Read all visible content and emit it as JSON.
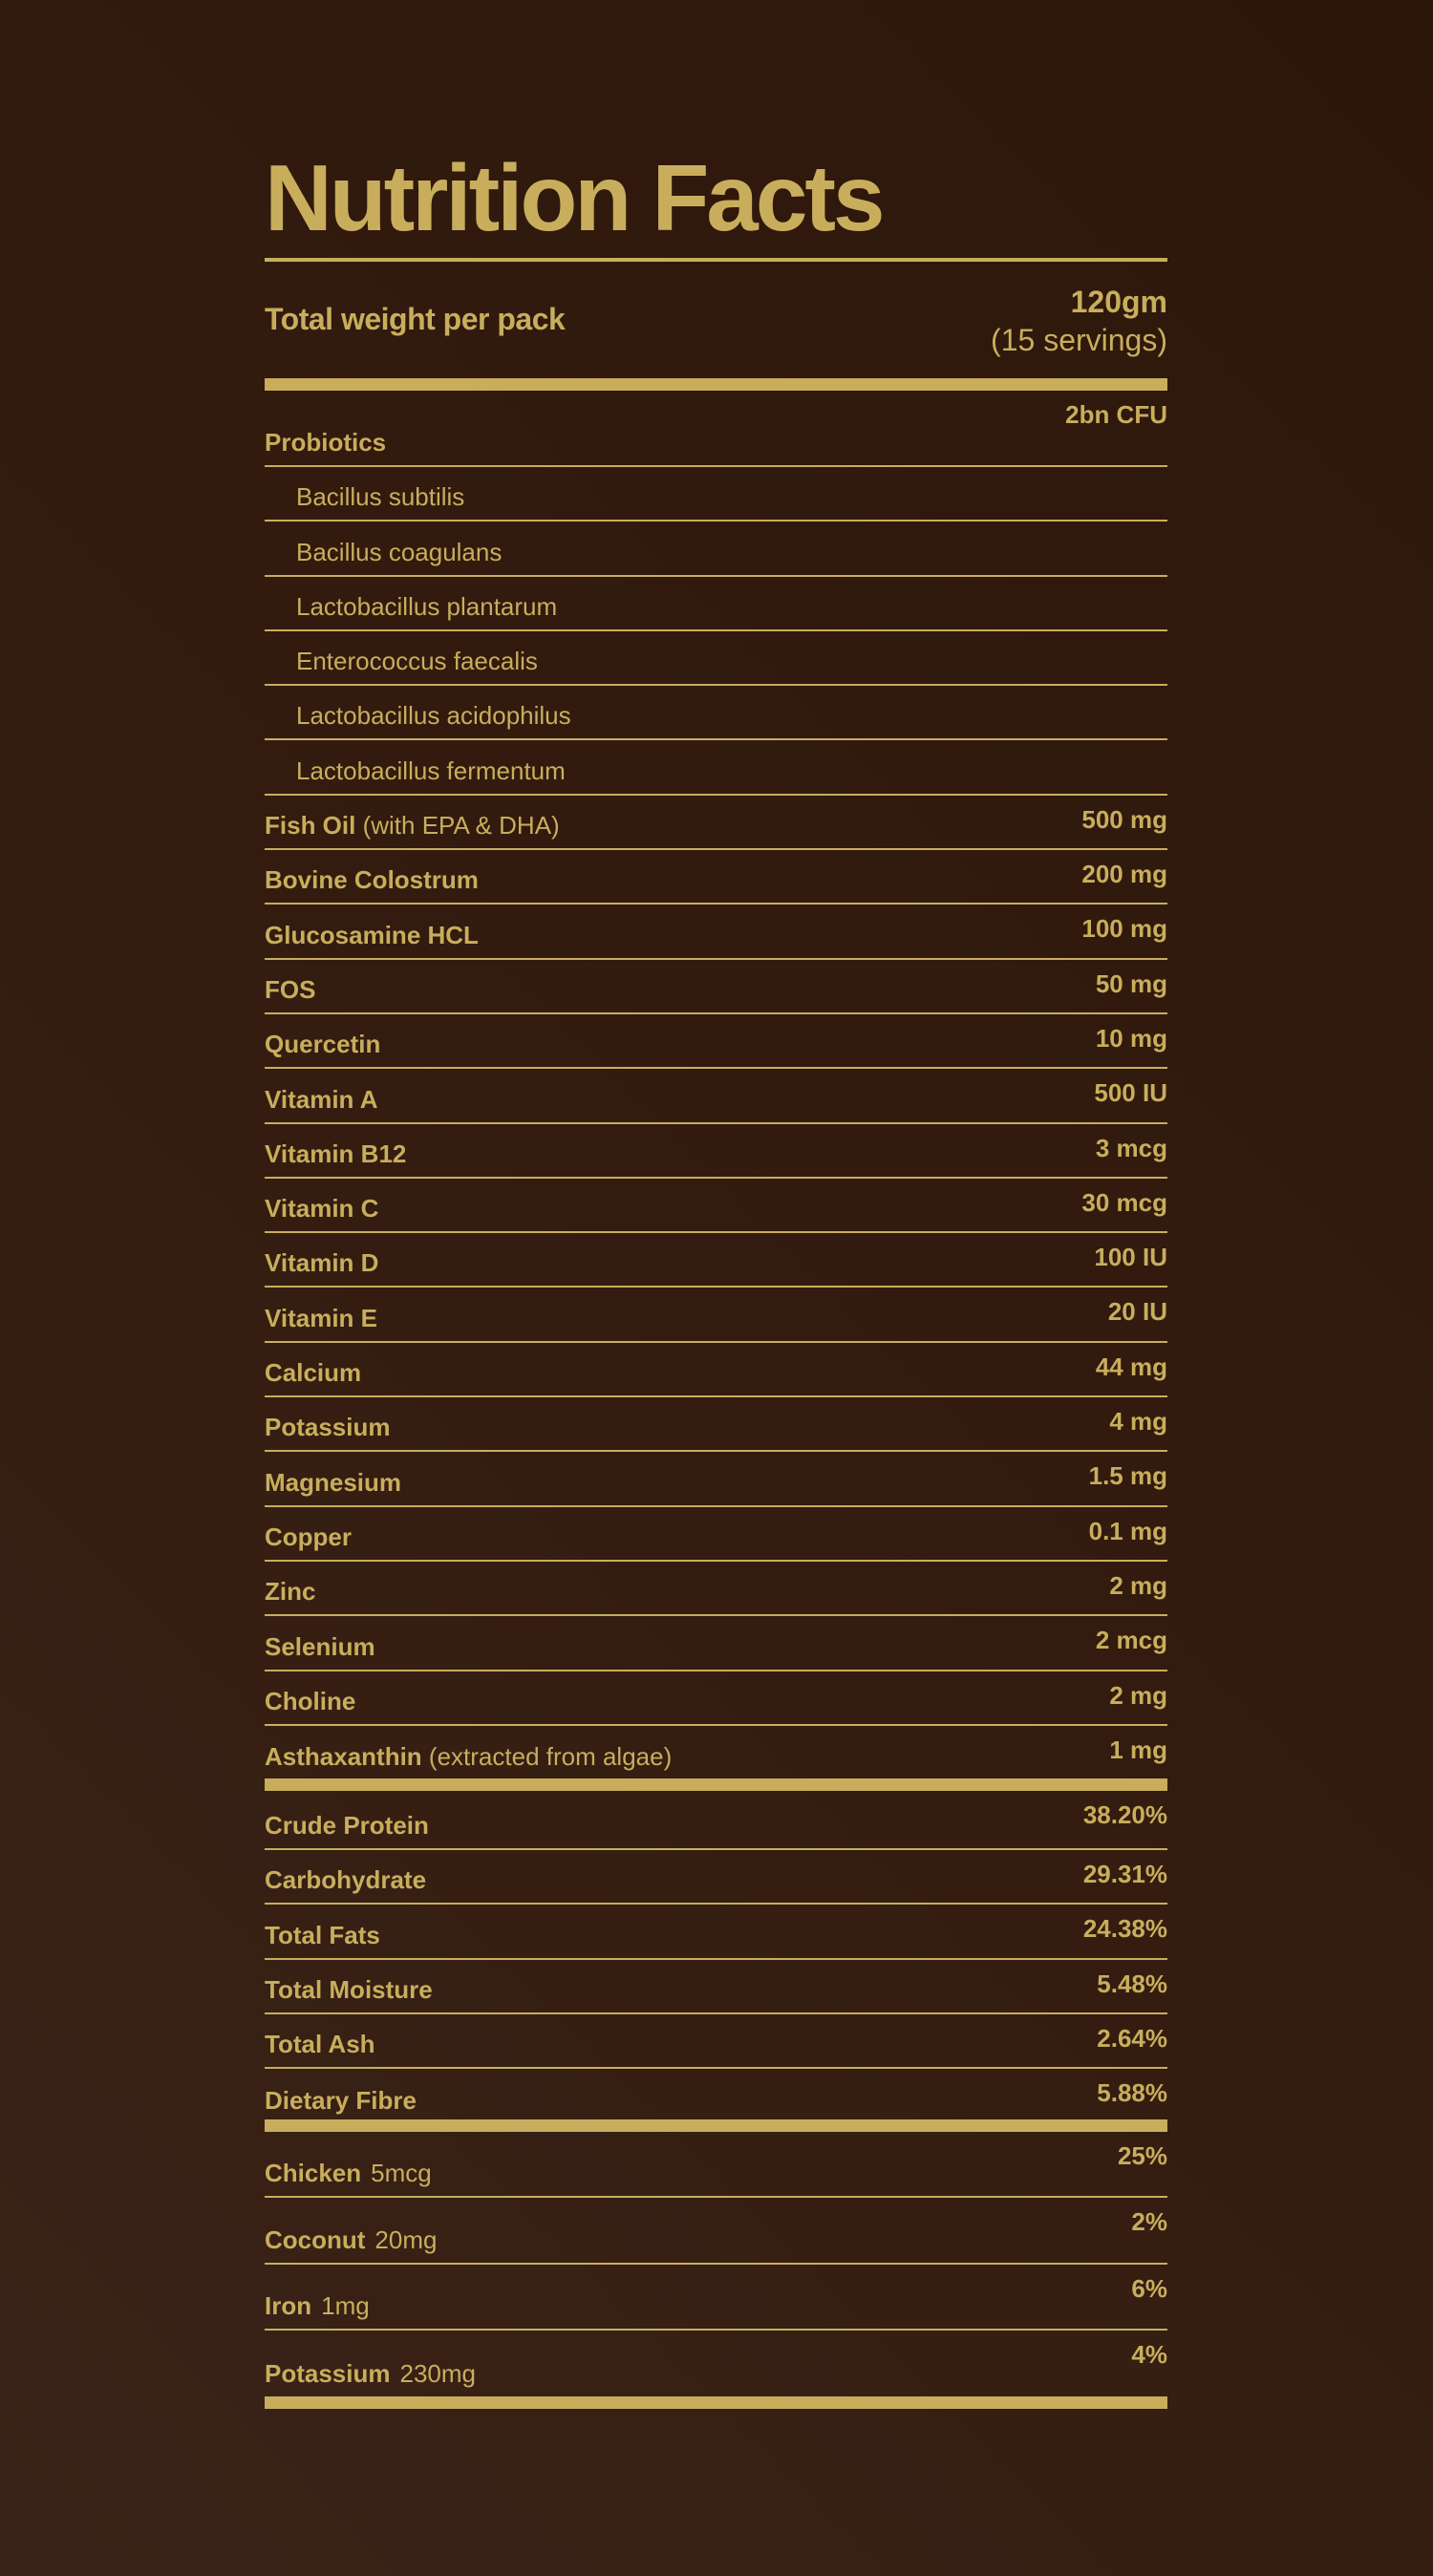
{
  "title": "Nutrition Facts",
  "weight": {
    "label": "Total weight per pack",
    "amount": "120gm",
    "servings": "(15 servings)"
  },
  "accent_color": "#c8ae5c",
  "ingredients": [
    {
      "label": "Probiotics",
      "value": "2bn CFU"
    },
    {
      "label": "Bacillus subtilis",
      "sub": true
    },
    {
      "label": "Bacillus coagulans",
      "sub": true
    },
    {
      "label": "Lactobacillus plantarum",
      "sub": true
    },
    {
      "label": "Enterococcus faecalis",
      "sub": true
    },
    {
      "label": "Lactobacillus acidophilus",
      "sub": true
    },
    {
      "label": "Lactobacillus fermentum",
      "sub": true
    },
    {
      "label": "Fish Oil",
      "note": "(with EPA & DHA)",
      "value": "500 mg"
    },
    {
      "label": "Bovine Colostrum",
      "value": "200 mg"
    },
    {
      "label": "Glucosamine HCL",
      "value": "100 mg"
    },
    {
      "label": "FOS",
      "value": "50 mg"
    },
    {
      "label": "Quercetin",
      "value": "10 mg"
    },
    {
      "label": "Vitamin A",
      "value": "500 IU"
    },
    {
      "label": "Vitamin B12",
      "value": "3 mcg"
    },
    {
      "label": "Vitamin C",
      "value": "30 mcg"
    },
    {
      "label": "Vitamin D",
      "value": "100 IU"
    },
    {
      "label": "Vitamin E",
      "value": "20 IU"
    },
    {
      "label": "Calcium",
      "value": "44 mg"
    },
    {
      "label": "Potassium",
      "value": "4 mg"
    },
    {
      "label": "Magnesium",
      "value": "1.5 mg"
    },
    {
      "label": "Copper",
      "value": "0.1 mg"
    },
    {
      "label": "Zinc",
      "value": "2 mg"
    },
    {
      "label": "Selenium",
      "value": "2 mcg"
    },
    {
      "label": "Choline",
      "value": "2 mg"
    },
    {
      "label": "Asthaxanthin",
      "note": "(extracted from algae)",
      "value": "1 mg"
    }
  ],
  "analysis": [
    {
      "label": "Crude Protein",
      "value": "38.20%"
    },
    {
      "label": "Carbohydrate",
      "value": "29.31%"
    },
    {
      "label": "Total Fats",
      "value": "24.38%"
    },
    {
      "label": "Total Moisture",
      "value": "5.48%"
    },
    {
      "label": "Total Ash",
      "value": "2.64%"
    },
    {
      "label": "Dietary Fibre",
      "value": "5.88%"
    }
  ],
  "daily_values": [
    {
      "label": "Chicken",
      "amount": "5mcg",
      "value": "25%"
    },
    {
      "label": "Coconut",
      "amount": "20mg",
      "value": "2%"
    },
    {
      "label": "Iron",
      "amount": "1mg",
      "value": "6%"
    },
    {
      "label": "Potassium",
      "amount": "230mg",
      "value": "4%"
    }
  ]
}
